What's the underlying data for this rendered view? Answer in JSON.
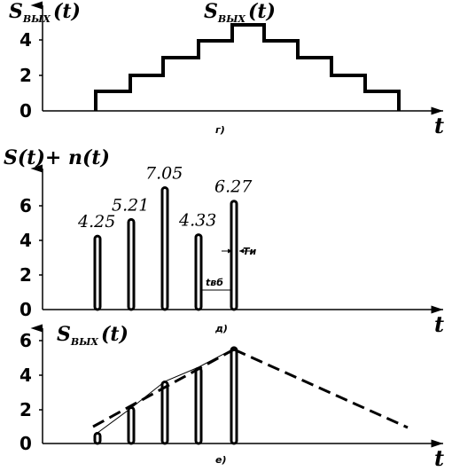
{
  "panel_g": {
    "ylabel": "S",
    "ylabel_sub": "ВЫХ",
    "ylabel_arg": "(t)",
    "peak_label": "S",
    "peak_label_sub": "ВЫХ",
    "peak_label_arg": "(t)",
    "yticks": [
      "0",
      "2",
      "4"
    ],
    "xlabel": "t",
    "caption": "г)"
  },
  "panel_d": {
    "ylabel": "S(t)+ n(t)",
    "yticks": [
      "0",
      "2",
      "4",
      "6"
    ],
    "xlabel": "t",
    "caption": "д)",
    "pulse_labels": [
      "4.25",
      "5.21",
      "7.05",
      "4.33",
      "6.27"
    ],
    "tau_label": "Tи",
    "period_label": "tвб"
  },
  "panel_e": {
    "ylabel": "S",
    "ylabel_sub": "ВЫХ",
    "ylabel_arg": "(t)",
    "yticks": [
      "0",
      "2",
      "4",
      "6"
    ],
    "xlabel": "t",
    "caption": "е)"
  },
  "chart_data": [
    {
      "type": "line",
      "x": [
        0,
        1,
        2,
        3,
        4,
        5,
        6,
        7,
        8,
        9
      ],
      "series": [
        {
          "values": [
            1,
            2,
            3,
            4,
            5,
            4,
            3,
            2,
            1,
            0
          ]
        }
      ],
      "ylim": [
        0,
        5
      ]
    },
    {
      "type": "bar",
      "categories": [
        "1",
        "2",
        "3",
        "4",
        "5"
      ],
      "values": [
        4.25,
        5.21,
        7.05,
        4.33,
        6.27
      ],
      "ylim": [
        0,
        7.5
      ]
    },
    {
      "type": "line",
      "series": [
        {
          "values": [
            0.6,
            2.1,
            3.6,
            4.4,
            5.6
          ]
        }
      ],
      "ylim": [
        0,
        6
      ]
    }
  ]
}
